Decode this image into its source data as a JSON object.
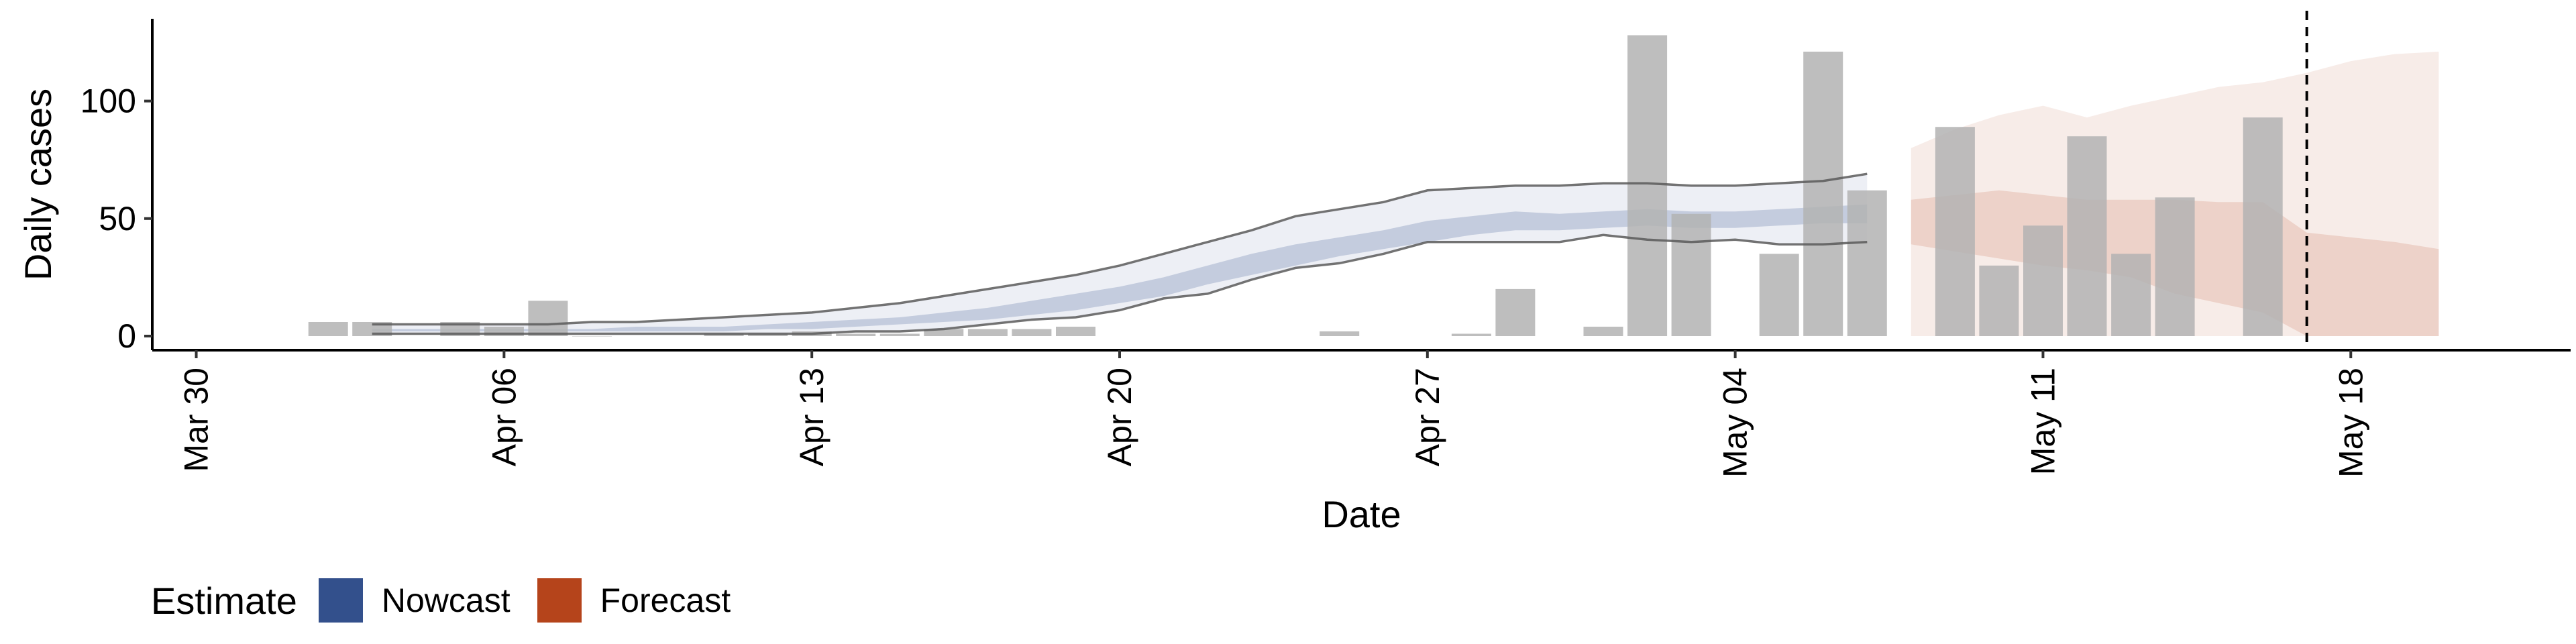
{
  "chart_data": {
    "type": "bar",
    "x_type": "date",
    "xlabel": "Date",
    "ylabel": "Daily cases",
    "ylim": [
      -6,
      135
    ],
    "xlim": [
      "2020-03-29",
      "2020-05-23"
    ],
    "x_ticks": [
      {
        "date": "2020-03-30",
        "label": "Mar 30"
      },
      {
        "date": "2020-04-06",
        "label": "Apr 06"
      },
      {
        "date": "2020-04-13",
        "label": "Apr 13"
      },
      {
        "date": "2020-04-20",
        "label": "Apr 20"
      },
      {
        "date": "2020-04-27",
        "label": "Apr 27"
      },
      {
        "date": "2020-05-04",
        "label": "May 04"
      },
      {
        "date": "2020-05-11",
        "label": "May 11"
      },
      {
        "date": "2020-05-18",
        "label": "May 18"
      }
    ],
    "y_ticks": [
      0,
      50,
      100
    ],
    "grid": false,
    "vline": {
      "date": "2020-05-17",
      "style": "dashed"
    },
    "bars": {
      "color": "#b3b3b3",
      "dates": [
        "2020-04-02",
        "2020-04-03",
        "2020-04-05",
        "2020-04-06",
        "2020-04-07",
        "2020-04-08",
        "2020-04-11",
        "2020-04-12",
        "2020-04-13",
        "2020-04-14",
        "2020-04-15",
        "2020-04-16",
        "2020-04-17",
        "2020-04-18",
        "2020-04-19",
        "2020-04-25",
        "2020-04-28",
        "2020-04-29",
        "2020-05-01",
        "2020-05-02",
        "2020-05-03",
        "2020-05-05",
        "2020-05-06",
        "2020-05-07",
        "2020-05-09",
        "2020-05-10",
        "2020-05-11",
        "2020-05-12",
        "2020-05-13",
        "2020-05-14",
        "2020-05-16"
      ],
      "values": [
        6,
        6,
        6,
        4,
        15,
        0,
        1,
        1,
        2,
        1,
        1,
        3,
        3,
        3,
        4,
        2,
        1,
        20,
        4,
        128,
        52,
        35,
        121,
        62,
        89,
        30,
        47,
        85,
        35,
        59,
        93
      ]
    },
    "series": [
      {
        "name": "Nowcast",
        "color": "#33508c",
        "dates": [
          "2020-04-03",
          "2020-04-04",
          "2020-04-05",
          "2020-04-06",
          "2020-04-07",
          "2020-04-08",
          "2020-04-09",
          "2020-04-10",
          "2020-04-11",
          "2020-04-12",
          "2020-04-13",
          "2020-04-14",
          "2020-04-15",
          "2020-04-16",
          "2020-04-17",
          "2020-04-18",
          "2020-04-19",
          "2020-04-20",
          "2020-04-21",
          "2020-04-22",
          "2020-04-23",
          "2020-04-24",
          "2020-04-25",
          "2020-04-26",
          "2020-04-27",
          "2020-04-28",
          "2020-04-29",
          "2020-04-30",
          "2020-05-01",
          "2020-05-02",
          "2020-05-03",
          "2020-05-04",
          "2020-05-05",
          "2020-05-06",
          "2020-05-07"
        ],
        "outer_upper": [
          5,
          5,
          5,
          5,
          5,
          6,
          6,
          7,
          8,
          9,
          10,
          12,
          14,
          17,
          20,
          23,
          26,
          30,
          35,
          40,
          45,
          51,
          54,
          57,
          62,
          63,
          64,
          64,
          65,
          65,
          64,
          64,
          65,
          66,
          69
        ],
        "outer_lower": [
          1,
          1,
          1,
          1,
          1,
          1,
          1,
          1,
          1,
          1,
          1,
          2,
          2,
          3,
          5,
          7,
          8,
          11,
          16,
          18,
          24,
          29,
          31,
          35,
          40,
          40,
          40,
          40,
          43,
          41,
          40,
          41,
          39,
          39,
          40
        ],
        "inner_upper": [
          3,
          3,
          3,
          3,
          3,
          3,
          4,
          4,
          4,
          5,
          6,
          7,
          8,
          10,
          12,
          15,
          18,
          21,
          25,
          30,
          35,
          39,
          42,
          45,
          49,
          51,
          53,
          52,
          53,
          54,
          53,
          53,
          54,
          55,
          56
        ],
        "inner_lower": [
          2,
          2,
          2,
          2,
          2,
          2,
          2,
          2,
          2,
          3,
          3,
          4,
          5,
          6,
          7,
          9,
          11,
          14,
          17,
          22,
          26,
          30,
          34,
          37,
          40,
          43,
          45,
          45,
          46,
          47,
          46,
          46,
          47,
          48,
          48
        ]
      },
      {
        "name": "Forecast",
        "color": "#b5441b",
        "dates": [
          "2020-05-08",
          "2020-05-09",
          "2020-05-10",
          "2020-05-11",
          "2020-05-12",
          "2020-05-13",
          "2020-05-14",
          "2020-05-15",
          "2020-05-16",
          "2020-05-17",
          "2020-05-18",
          "2020-05-19",
          "2020-05-20"
        ],
        "outer_upper": [
          80,
          88,
          94,
          98,
          93,
          98,
          102,
          106,
          108,
          112,
          117,
          120,
          121
        ],
        "outer_lower": [
          0,
          0,
          0,
          0,
          0,
          0,
          0,
          0,
          0,
          0,
          0,
          0,
          0
        ],
        "inner_upper": [
          58,
          60,
          62,
          60,
          58,
          58,
          58,
          57,
          57,
          44,
          42,
          40,
          37
        ],
        "inner_lower": [
          39,
          36,
          33,
          30,
          28,
          25,
          18,
          14,
          10,
          0,
          0,
          0,
          0
        ]
      }
    ],
    "legend": {
      "title": "Estimate",
      "position": "bottom-left",
      "entries": [
        {
          "label": "Nowcast",
          "color": "#33508c"
        },
        {
          "label": "Forecast",
          "color": "#b5441b"
        }
      ]
    }
  }
}
